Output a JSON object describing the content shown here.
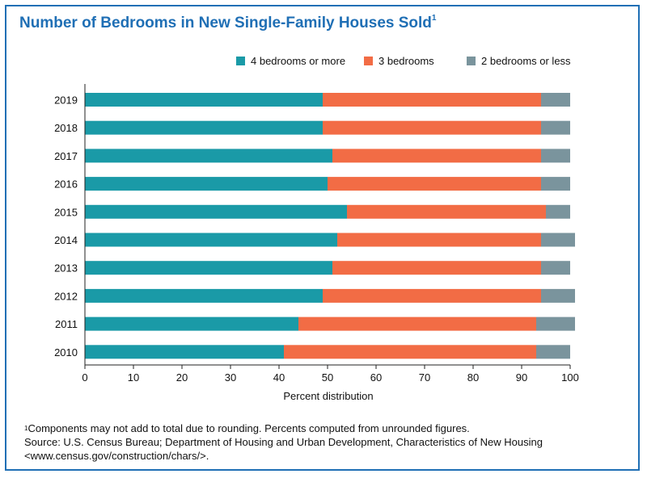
{
  "title": "Number of Bedrooms in New Single-Family Houses Sold",
  "title_footnote_marker": "1",
  "colors": {
    "four_plus": "#1a9aa7",
    "three": "#f26c45",
    "two_or_less": "#7a949d",
    "frame": "#1f6fb5",
    "title": "#1f6fb5"
  },
  "chart_data": {
    "type": "bar",
    "orientation": "horizontal",
    "stacked": true,
    "categories": [
      "2019",
      "2018",
      "2017",
      "2016",
      "2015",
      "2014",
      "2013",
      "2012",
      "2011",
      "2010"
    ],
    "series": [
      {
        "name": "4 bedrooms or more",
        "values": [
          49,
          49,
          51,
          50,
          54,
          52,
          51,
          49,
          44,
          41
        ]
      },
      {
        "name": "3 bedrooms",
        "values": [
          45,
          45,
          43,
          44,
          41,
          42,
          43,
          45,
          49,
          52
        ]
      },
      {
        "name": "2 bedrooms or less",
        "values": [
          6,
          6,
          6,
          6,
          5,
          7,
          6,
          7,
          8,
          7
        ]
      }
    ],
    "xlabel": "Percent distribution",
    "ylabel": "",
    "xlim": [
      0,
      100
    ],
    "xticks": [
      "0",
      "10",
      "20",
      "30",
      "40",
      "50",
      "60",
      "70",
      "80",
      "90",
      "100"
    ],
    "grid": false,
    "legend_position": "top-right"
  },
  "footnote": {
    "marker": "1",
    "line1": "Components may not add to total due to rounding. Percents computed from unrounded figures.",
    "line2": "Source: U.S. Census Bureau; Department of Housing and Urban Development, Characteristics of New Housing",
    "line3": "<www.census.gov/construction/chars/>."
  }
}
